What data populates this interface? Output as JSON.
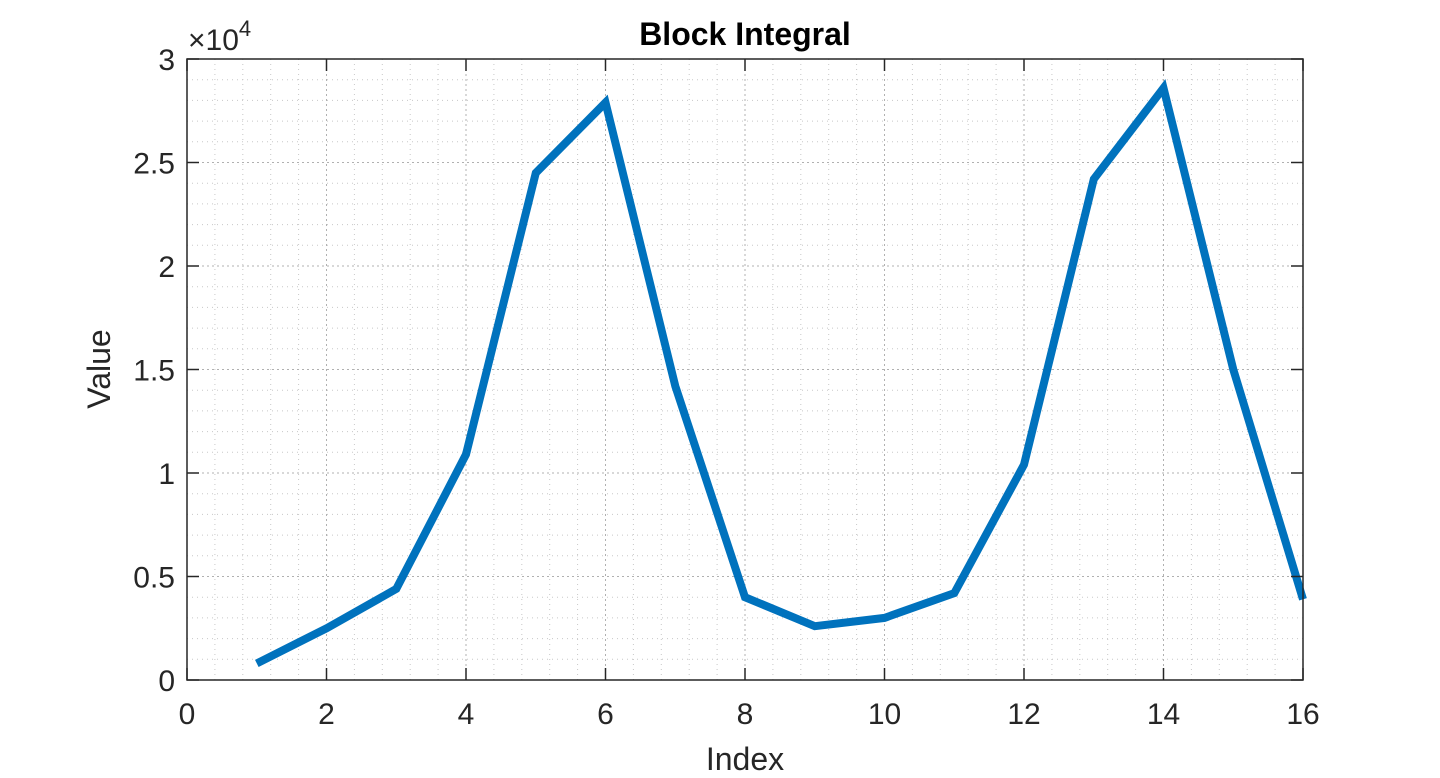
{
  "chart_data": {
    "type": "line",
    "title": "Block Integral",
    "xlabel": "Index",
    "ylabel": "Value",
    "xlim": [
      0,
      16
    ],
    "ylim": [
      0,
      30000
    ],
    "x_ticks": [
      0,
      2,
      4,
      6,
      8,
      10,
      12,
      14,
      16
    ],
    "y_ticks": [
      0,
      5000,
      10000,
      15000,
      20000,
      25000,
      30000
    ],
    "y_tick_labels": [
      "0",
      "0.5",
      "1",
      "1.5",
      "2",
      "2.5",
      "3"
    ],
    "y_exponent_label": {
      "base": "×10",
      "exp": "4"
    },
    "grid": true,
    "minor_grid": true,
    "series": [
      {
        "color": "#0072BD",
        "x": [
          1,
          2,
          3,
          4,
          5,
          6,
          7,
          8,
          9,
          10,
          11,
          12,
          13,
          14,
          15,
          16
        ],
        "values": [
          800,
          2500,
          4400,
          10900,
          24500,
          27900,
          14200,
          4000,
          2600,
          3000,
          4200,
          10400,
          24200,
          28600,
          15000,
          3900
        ]
      }
    ]
  }
}
